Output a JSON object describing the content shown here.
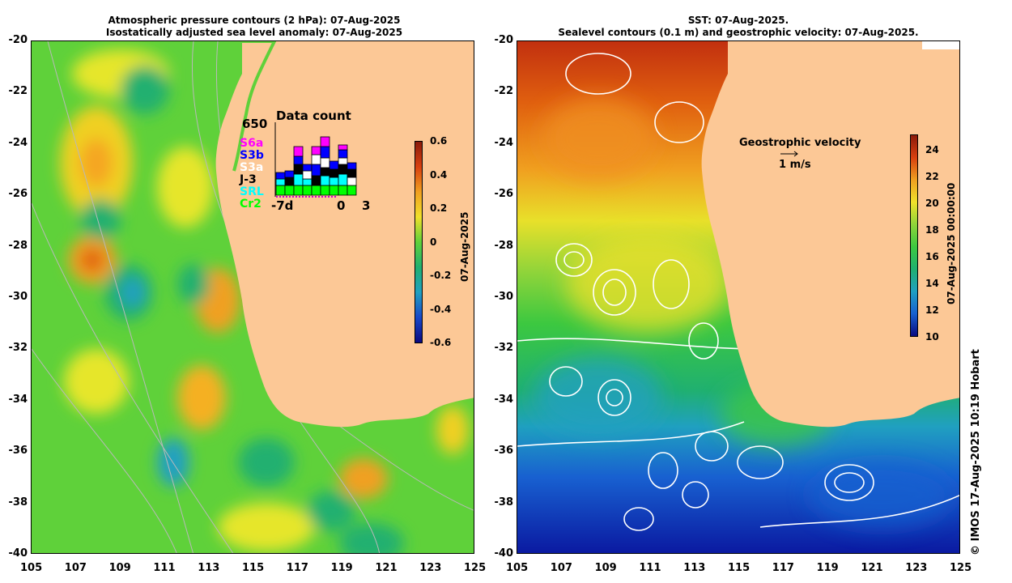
{
  "left_panel": {
    "title_line1": "Atmospheric pressure contours (2 hPa): 07-Aug-2025",
    "title_line2": "Isostatically adjusted sea level anomaly: 07-Aug-2025",
    "colorbar_label": "07-Aug-2025",
    "colorbar_ticks": [
      "0.6",
      "0.4",
      "0.2",
      "0",
      "-0.2",
      "-0.4",
      "-0.6"
    ],
    "data_count": {
      "title": "Data count",
      "max_label": "650",
      "x_labels": [
        "-7d",
        "0",
        "3"
      ],
      "missions": [
        {
          "name": "S6a",
          "color": "#ff00ff"
        },
        {
          "name": "S3b",
          "color": "#0000ff"
        },
        {
          "name": "S3a",
          "color": "#ffffff"
        },
        {
          "name": "J-3",
          "color": "#000000"
        },
        {
          "name": "SRL",
          "color": "#00ffff"
        },
        {
          "name": "Cr2",
          "color": "#00ff00"
        }
      ]
    }
  },
  "right_panel": {
    "title_line1": "SST: 07-Aug-2025.",
    "title_line2": "Sealevel contours (0.1 m) and geostrophic velocity: 07-Aug-2025.",
    "colorbar_label": "07-Aug-2025 00:00:00",
    "colorbar_ticks": [
      "24",
      "22",
      "20",
      "18",
      "16",
      "14",
      "12",
      "10"
    ],
    "velocity_label": "Geostrophic velocity",
    "velocity_scale": "1 m/s"
  },
  "axes": {
    "lat_ticks": [
      "-20",
      "-22",
      "-24",
      "-26",
      "-28",
      "-30",
      "-32",
      "-34",
      "-36",
      "-38",
      "-40"
    ],
    "lon_ticks": [
      "105",
      "107",
      "109",
      "111",
      "113",
      "115",
      "117",
      "119",
      "121",
      "123",
      "125"
    ]
  },
  "credit": "© IMOS 17-Aug-2025 10:19 Hobart",
  "colors": {
    "land": "#fcc896",
    "accent": "#000000"
  }
}
